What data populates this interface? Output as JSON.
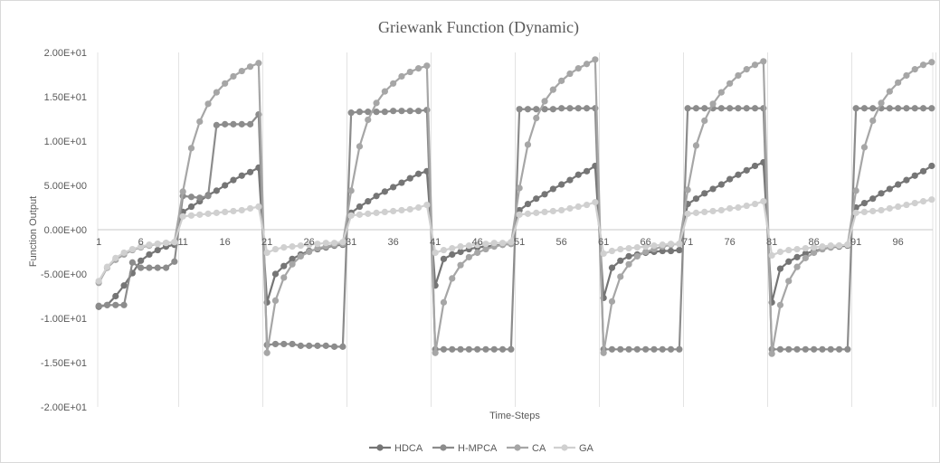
{
  "chart_data": {
    "type": "line",
    "title": "Griewank Function (Dynamic)",
    "xlabel": "Time-Steps",
    "ylabel": "Function Output",
    "ylim": [
      -20,
      20
    ],
    "yticks": [
      20,
      15,
      10,
      5,
      0,
      -5,
      -10,
      -15,
      -20
    ],
    "ytick_labels": [
      "2.00E+01",
      "1.50E+01",
      "1.00E+01",
      "5.00E+00",
      "0.00E+00",
      "-5.00E+00",
      "-1.00E+01",
      "-1.50E+01",
      "-2.00E+01"
    ],
    "x_count": 100,
    "xtick_labels": [
      "1",
      "6",
      "11",
      "16",
      "21",
      "26",
      "31",
      "36",
      "41",
      "46",
      "51",
      "56",
      "61",
      "66",
      "71",
      "76",
      "81",
      "86",
      "91",
      "96"
    ],
    "legend_position": "bottom",
    "grid": "vertical",
    "series": [
      {
        "name": "HDCA",
        "color": "#757575",
        "values": [
          -8.7,
          -8.5,
          -7.5,
          -6.3,
          -4.9,
          -3.5,
          -2.8,
          -2.3,
          -1.9,
          -1.7,
          2,
          2.6,
          3.2,
          3.9,
          4.4,
          5.0,
          5.6,
          6.1,
          6.5,
          7.0,
          -8.2,
          -5.0,
          -4.1,
          -3.3,
          -2.8,
          -2.4,
          -2.2,
          -2.0,
          -1.8,
          -1.7,
          1.9,
          2.6,
          3.2,
          3.8,
          4.3,
          4.8,
          5.3,
          5.8,
          6.3,
          6.6,
          -6.3,
          -3.3,
          -2.8,
          -2.5,
          -2.2,
          -2.0,
          -1.9,
          -1.8,
          -1.7,
          -1.6,
          2.2,
          2.9,
          3.5,
          4.0,
          4.6,
          5.1,
          5.6,
          6.2,
          6.6,
          7.2,
          -7.7,
          -4.3,
          -3.5,
          -3.0,
          -2.8,
          -2.6,
          -2.5,
          -2.4,
          -2.4,
          -2.3,
          2.9,
          3.5,
          4.1,
          4.6,
          5.1,
          5.7,
          6.2,
          6.7,
          7.2,
          7.6,
          -8.2,
          -4.4,
          -3.6,
          -3.1,
          -2.7,
          -2.4,
          -2.2,
          -2.0,
          -1.9,
          -1.8,
          2.5,
          3.0,
          3.5,
          4.1,
          4.6,
          5.1,
          5.6,
          6.1,
          6.6,
          7.2
        ]
      },
      {
        "name": "H-MPCA",
        "color": "#8c8c8c",
        "values": [
          -8.6,
          -8.5,
          -8.5,
          -8.5,
          -3.7,
          -4.3,
          -4.3,
          -4.3,
          -4.3,
          -3.6,
          3.8,
          3.7,
          3.6,
          3.8,
          11.8,
          11.9,
          11.9,
          11.9,
          11.9,
          13.0,
          -13.0,
          -12.9,
          -12.9,
          -12.9,
          -13.1,
          -13.1,
          -13.1,
          -13.1,
          -13.2,
          -13.2,
          13.2,
          13.3,
          13.3,
          13.3,
          13.3,
          13.4,
          13.4,
          13.4,
          13.4,
          13.5,
          -13.5,
          -13.5,
          -13.5,
          -13.5,
          -13.5,
          -13.5,
          -13.5,
          -13.5,
          -13.5,
          -13.5,
          13.6,
          13.6,
          13.6,
          13.6,
          13.6,
          13.7,
          13.7,
          13.7,
          13.7,
          13.7,
          -13.5,
          -13.5,
          -13.5,
          -13.5,
          -13.5,
          -13.5,
          -13.5,
          -13.5,
          -13.5,
          -13.5,
          13.7,
          13.7,
          13.7,
          13.7,
          13.7,
          13.7,
          13.7,
          13.7,
          13.7,
          13.7,
          -13.5,
          -13.5,
          -13.5,
          -13.5,
          -13.5,
          -13.5,
          -13.5,
          -13.5,
          -13.5,
          -13.5,
          13.7,
          13.7,
          13.7,
          13.7,
          13.7,
          13.7,
          13.7,
          13.7,
          13.7,
          13.7
        ]
      },
      {
        "name": "CA",
        "color": "#a6a6a6",
        "values": [
          -6.0,
          -4.3,
          -3.4,
          -2.8,
          -2.3,
          -2.0,
          -1.8,
          -1.6,
          -1.5,
          -1.4,
          4.3,
          9.2,
          12.2,
          14.2,
          15.5,
          16.5,
          17.3,
          17.9,
          18.4,
          18.8,
          -13.9,
          -8.0,
          -5.4,
          -3.9,
          -3.0,
          -2.5,
          -2.1,
          -1.9,
          -1.7,
          -1.6,
          4.4,
          9.4,
          12.4,
          14.3,
          15.6,
          16.5,
          17.3,
          17.8,
          18.2,
          18.5,
          -13.9,
          -8.2,
          -5.5,
          -4.0,
          -3.1,
          -2.6,
          -2.2,
          -1.9,
          -1.7,
          -1.6,
          4.7,
          9.6,
          12.6,
          14.5,
          15.8,
          16.8,
          17.6,
          18.2,
          18.7,
          19.2,
          -13.9,
          -8.1,
          -5.3,
          -3.9,
          -3.0,
          -2.5,
          -2.2,
          -1.9,
          -1.7,
          -1.6,
          4.5,
          9.5,
          12.3,
          14.2,
          15.5,
          16.5,
          17.4,
          18.1,
          18.6,
          19.0,
          -14.0,
          -8.5,
          -5.8,
          -4.2,
          -3.2,
          -2.6,
          -2.2,
          -2.0,
          -1.8,
          -1.7,
          4.4,
          9.3,
          12.3,
          14.3,
          15.6,
          16.6,
          17.4,
          18.1,
          18.6,
          18.9
        ]
      },
      {
        "name": "GA",
        "color": "#d0d0d0",
        "values": [
          -5.8,
          -4.2,
          -3.2,
          -2.6,
          -2.2,
          -1.9,
          -1.7,
          -1.6,
          -1.5,
          -1.4,
          1.5,
          1.6,
          1.7,
          1.8,
          1.9,
          2.0,
          2.1,
          2.2,
          2.4,
          2.6,
          -2.6,
          -2.2,
          -2.0,
          -1.9,
          -1.8,
          -1.7,
          -1.6,
          -1.5,
          -1.5,
          -1.4,
          1.6,
          1.7,
          1.8,
          1.9,
          2.0,
          2.1,
          2.2,
          2.3,
          2.5,
          2.8,
          -2.6,
          -2.3,
          -2.1,
          -1.9,
          -1.8,
          -1.7,
          -1.6,
          -1.5,
          -1.5,
          -1.4,
          1.7,
          1.8,
          1.9,
          2.0,
          2.1,
          2.2,
          2.4,
          2.6,
          2.8,
          3.1,
          -2.7,
          -2.4,
          -2.2,
          -2.1,
          -2.0,
          -1.9,
          -1.8,
          -1.7,
          -1.6,
          -1.6,
          1.8,
          1.9,
          2.0,
          2.1,
          2.2,
          2.4,
          2.5,
          2.7,
          2.9,
          3.2,
          -2.9,
          -2.5,
          -2.3,
          -2.2,
          -2.1,
          -2.0,
          -1.9,
          -1.8,
          -1.8,
          -1.7,
          1.9,
          2.0,
          2.1,
          2.2,
          2.4,
          2.6,
          2.8,
          3.0,
          3.2,
          3.4
        ]
      }
    ]
  }
}
